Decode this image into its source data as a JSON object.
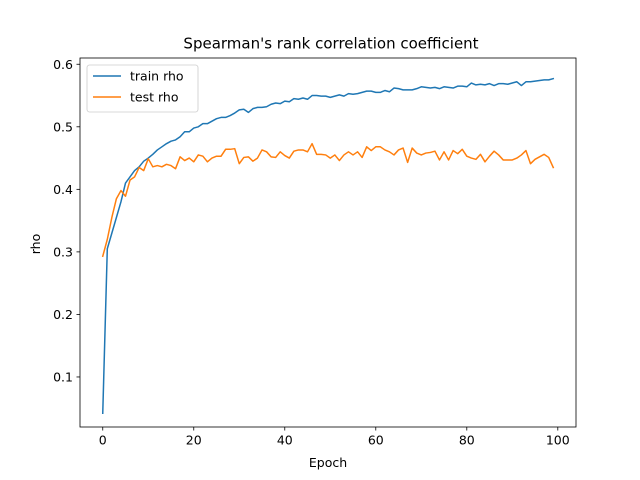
{
  "chart_data": {
    "type": "line",
    "title": "Spearman's rank correlation coefficient",
    "xlabel": "Epoch",
    "ylabel": "rho",
    "xlim": [
      -5,
      104
    ],
    "ylim": [
      0.02,
      0.61
    ],
    "xticks": [
      0,
      20,
      40,
      60,
      80,
      100
    ],
    "yticks": [
      0.1,
      0.2,
      0.3,
      0.4,
      0.5,
      0.6
    ],
    "ytick_labels": [
      "0.1",
      "0.2",
      "0.3",
      "0.4",
      "0.5",
      "0.6"
    ],
    "grid": false,
    "legend": "upper-left",
    "series": [
      {
        "name": "train rho",
        "color": "#1f77b4",
        "values": [
          0.042,
          0.305,
          0.33,
          0.355,
          0.38,
          0.41,
          0.42,
          0.43,
          0.436,
          0.445,
          0.45,
          0.456,
          0.463,
          0.468,
          0.473,
          0.477,
          0.479,
          0.484,
          0.492,
          0.492,
          0.498,
          0.5,
          0.505,
          0.505,
          0.509,
          0.513,
          0.515,
          0.515,
          0.518,
          0.522,
          0.527,
          0.528,
          0.523,
          0.529,
          0.531,
          0.531,
          0.532,
          0.536,
          0.538,
          0.537,
          0.541,
          0.54,
          0.545,
          0.544,
          0.546,
          0.544,
          0.55,
          0.55,
          0.549,
          0.549,
          0.547,
          0.549,
          0.551,
          0.549,
          0.553,
          0.552,
          0.553,
          0.555,
          0.557,
          0.557,
          0.555,
          0.555,
          0.558,
          0.556,
          0.562,
          0.561,
          0.559,
          0.559,
          0.559,
          0.561,
          0.564,
          0.563,
          0.562,
          0.563,
          0.561,
          0.564,
          0.563,
          0.562,
          0.565,
          0.565,
          0.564,
          0.57,
          0.567,
          0.568,
          0.567,
          0.569,
          0.566,
          0.569,
          0.569,
          0.568,
          0.57,
          0.572,
          0.566,
          0.572,
          0.572,
          0.573,
          0.574,
          0.575,
          0.575,
          0.577
        ]
      },
      {
        "name": "test rho",
        "color": "#ff7f0e",
        "values": [
          0.293,
          0.32,
          0.355,
          0.385,
          0.398,
          0.389,
          0.415,
          0.42,
          0.435,
          0.43,
          0.449,
          0.436,
          0.438,
          0.436,
          0.44,
          0.438,
          0.433,
          0.452,
          0.446,
          0.45,
          0.444,
          0.455,
          0.453,
          0.444,
          0.45,
          0.453,
          0.453,
          0.464,
          0.464,
          0.465,
          0.441,
          0.451,
          0.452,
          0.445,
          0.45,
          0.463,
          0.46,
          0.452,
          0.451,
          0.46,
          0.454,
          0.45,
          0.461,
          0.463,
          0.463,
          0.46,
          0.473,
          0.456,
          0.456,
          0.455,
          0.45,
          0.455,
          0.446,
          0.455,
          0.46,
          0.455,
          0.46,
          0.451,
          0.468,
          0.462,
          0.468,
          0.468,
          0.463,
          0.46,
          0.455,
          0.463,
          0.466,
          0.443,
          0.466,
          0.458,
          0.455,
          0.458,
          0.459,
          0.461,
          0.447,
          0.46,
          0.447,
          0.462,
          0.457,
          0.464,
          0.453,
          0.45,
          0.448,
          0.456,
          0.444,
          0.453,
          0.461,
          0.455,
          0.447,
          0.447,
          0.447,
          0.45,
          0.455,
          0.462,
          0.441,
          0.448,
          0.452,
          0.456,
          0.451,
          0.435
        ]
      }
    ]
  }
}
